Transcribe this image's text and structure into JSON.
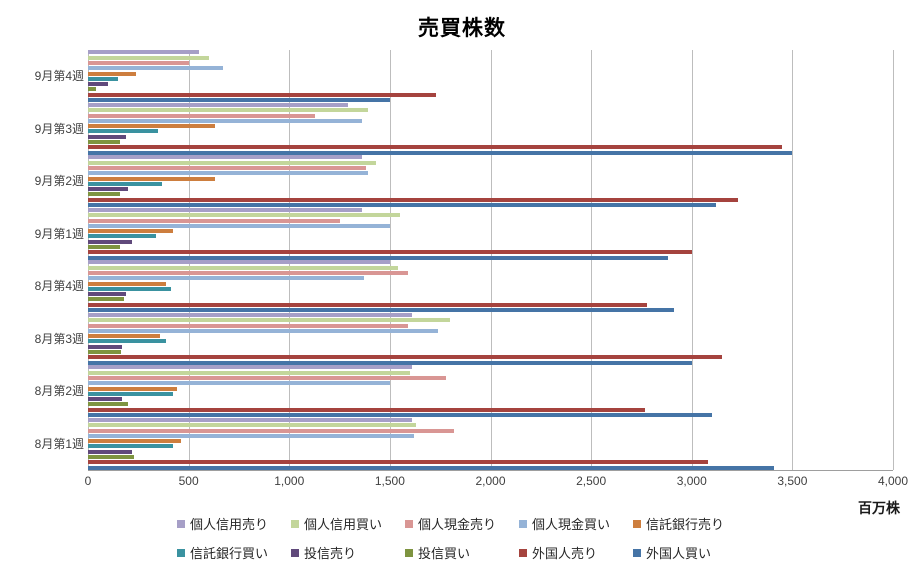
{
  "title": "売買株数",
  "unit_label": "百万株",
  "axis": {
    "x_ticks": [
      "0",
      "500",
      "1,000",
      "1,500",
      "2,000",
      "2,500",
      "3,000",
      "3,500",
      "4,000"
    ]
  },
  "chart_data": {
    "type": "bar",
    "orientation": "horizontal",
    "title": "売買株数",
    "xlabel": "百万株",
    "xlim": [
      0,
      4000
    ],
    "grid": true,
    "legend_position": "bottom",
    "categories": [
      "9月第4週",
      "9月第3週",
      "9月第2週",
      "9月第1週",
      "8月第4週",
      "8月第3週",
      "8月第2週",
      "8月第1週"
    ],
    "series": [
      {
        "name": "個人信用売り",
        "color": "#a69fc7",
        "values": [
          550,
          1290,
          1360,
          1360,
          1500,
          1610,
          1610,
          1610
        ]
      },
      {
        "name": "個人信用買い",
        "color": "#c3d69b",
        "values": [
          600,
          1390,
          1430,
          1550,
          1540,
          1800,
          1600,
          1630
        ]
      },
      {
        "name": "個人現金売り",
        "color": "#d99694",
        "values": [
          500,
          1130,
          1380,
          1250,
          1590,
          1590,
          1780,
          1820
        ]
      },
      {
        "name": "個人現金買い",
        "color": "#95b3d7",
        "values": [
          670,
          1360,
          1390,
          1500,
          1370,
          1740,
          1500,
          1620
        ]
      },
      {
        "name": "信託銀行売り",
        "color": "#cd7e3e",
        "values": [
          240,
          630,
          630,
          420,
          390,
          360,
          440,
          460
        ]
      },
      {
        "name": "信託銀行買い",
        "color": "#3a92a0",
        "values": [
          150,
          350,
          370,
          340,
          410,
          390,
          420,
          420
        ]
      },
      {
        "name": "投信売り",
        "color": "#60497b",
        "values": [
          100,
          190,
          200,
          220,
          190,
          170,
          170,
          220
        ]
      },
      {
        "name": "投信買い",
        "color": "#7e9440",
        "values": [
          40,
          160,
          160,
          160,
          180,
          165,
          200,
          230
        ]
      },
      {
        "name": "外国人売り",
        "color": "#a5433e",
        "values": [
          1730,
          3450,
          3230,
          3000,
          2780,
          3150,
          2770,
          3080
        ]
      },
      {
        "name": "外国人買い",
        "color": "#4574a6",
        "values": [
          1500,
          3500,
          3120,
          2880,
          2910,
          3000,
          3100,
          3410
        ]
      }
    ]
  }
}
